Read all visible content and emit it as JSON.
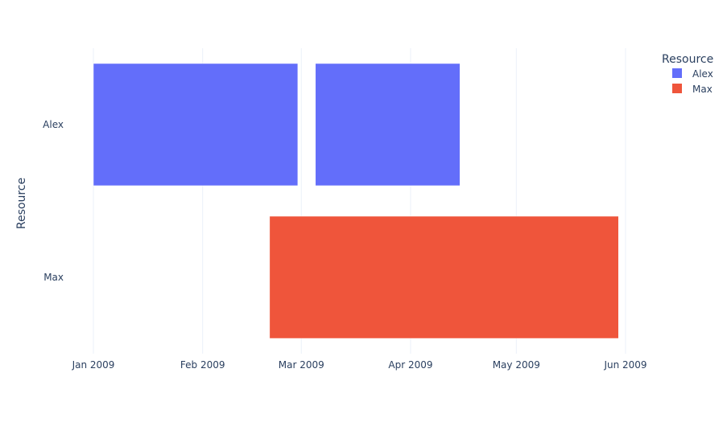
{
  "chart_data": {
    "type": "bar",
    "orientation": "horizontal-timeline",
    "title": "",
    "xlabel": "",
    "ylabel": "Resource",
    "xlim": [
      "2009-01-01",
      "2009-06-01"
    ],
    "x_ticks": [
      {
        "date": "2009-01-01",
        "label": "Jan 2009"
      },
      {
        "date": "2009-02-01",
        "label": "Feb 2009"
      },
      {
        "date": "2009-03-01",
        "label": "Mar 2009"
      },
      {
        "date": "2009-04-01",
        "label": "Apr 2009"
      },
      {
        "date": "2009-05-01",
        "label": "May 2009"
      },
      {
        "date": "2009-06-01",
        "label": "Jun 2009"
      }
    ],
    "categories": [
      "Alex",
      "Max"
    ],
    "grid": true,
    "legend": {
      "title": "Resource",
      "placement": "top-right"
    },
    "series": [
      {
        "name": "Alex",
        "color": "#636efa",
        "tasks": [
          {
            "start": "2009-01-01",
            "finish": "2009-02-28"
          },
          {
            "start": "2009-03-05",
            "finish": "2009-04-15"
          }
        ]
      },
      {
        "name": "Max",
        "color": "#ef553b",
        "tasks": [
          {
            "start": "2009-02-20",
            "finish": "2009-05-30"
          }
        ]
      }
    ]
  }
}
